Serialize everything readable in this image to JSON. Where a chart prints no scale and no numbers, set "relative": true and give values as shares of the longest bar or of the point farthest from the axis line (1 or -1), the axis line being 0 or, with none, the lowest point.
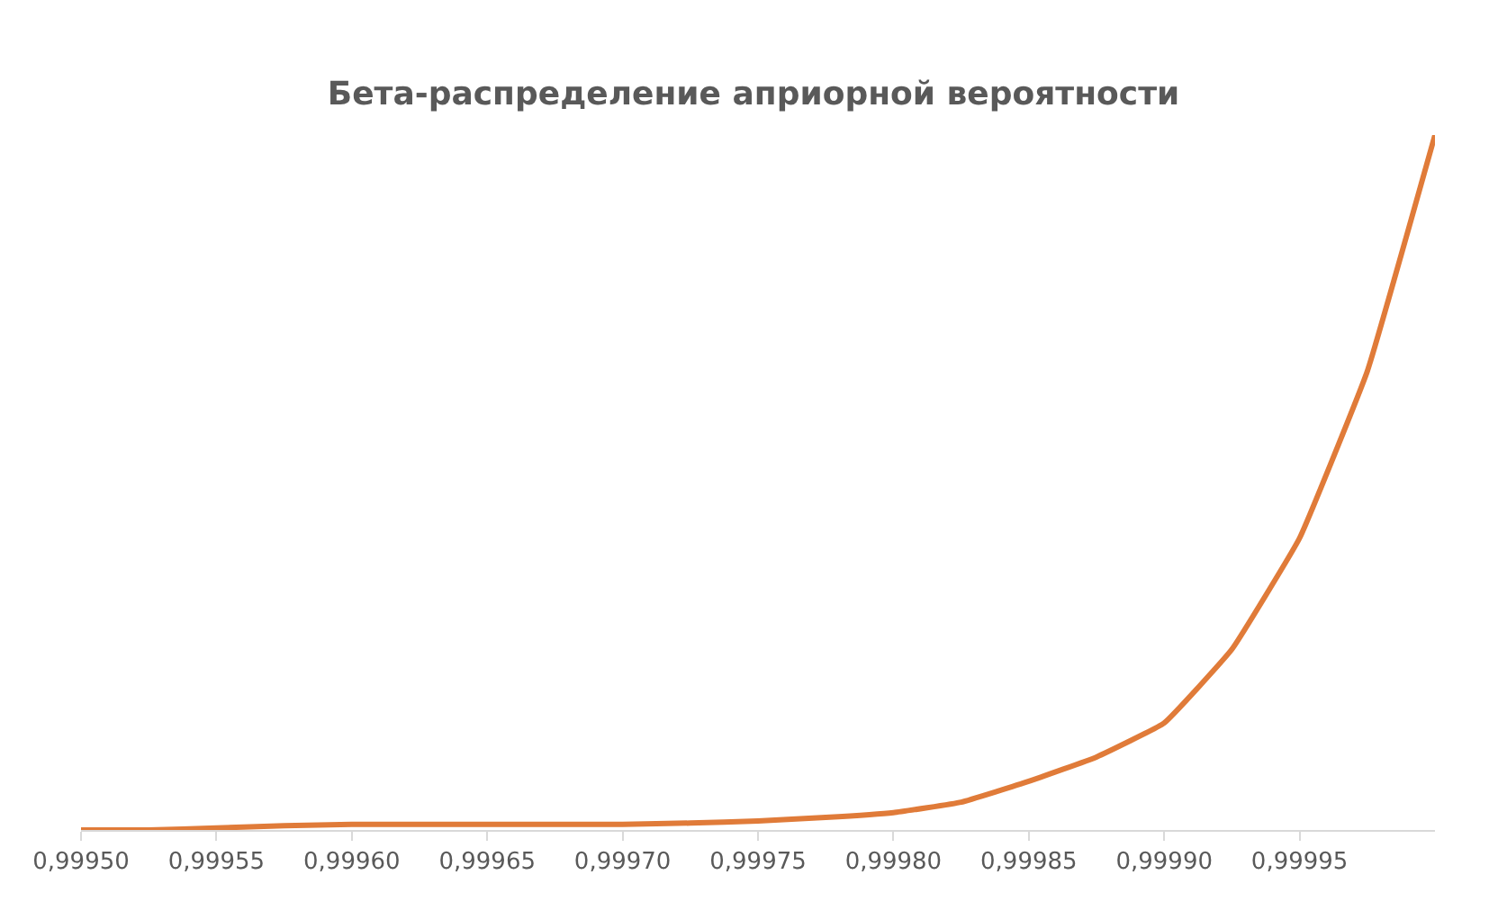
{
  "chart_data": {
    "type": "line",
    "title": "Бета-распределение априорной вероятности",
    "relative": true,
    "color": "#e07b39",
    "x": [
      0.9995,
      0.999525,
      0.99955,
      0.999575,
      0.9996,
      0.999625,
      0.99965,
      0.999675,
      0.9997,
      0.999725,
      0.99975,
      0.999775,
      0.9998,
      0.999825,
      0.99985,
      0.999875,
      0.9999,
      0.999925,
      0.99995,
      0.999975,
      1.0
    ],
    "values": [
      0.0,
      0.0,
      0.003,
      0.006,
      0.008,
      0.008,
      0.008,
      0.008,
      0.008,
      0.01,
      0.013,
      0.018,
      0.025,
      0.04,
      0.07,
      0.105,
      0.154,
      0.26,
      0.42,
      0.66,
      1.0
    ],
    "xlim": [
      0.9995,
      1.0
    ],
    "xticks": [
      {
        "value": 0.9995,
        "label": "0,99950"
      },
      {
        "value": 0.99955,
        "label": "0,99955"
      },
      {
        "value": 0.9996,
        "label": "0,99960"
      },
      {
        "value": 0.99965,
        "label": "0,99965"
      },
      {
        "value": 0.9997,
        "label": "0,99970"
      },
      {
        "value": 0.99975,
        "label": "0,99975"
      },
      {
        "value": 0.9998,
        "label": "0,99980"
      },
      {
        "value": 0.99985,
        "label": "0,99985"
      },
      {
        "value": 0.9999,
        "label": "0,99990"
      },
      {
        "value": 0.99995,
        "label": "0,99995"
      }
    ],
    "marker": "none",
    "line_style": "solid"
  }
}
